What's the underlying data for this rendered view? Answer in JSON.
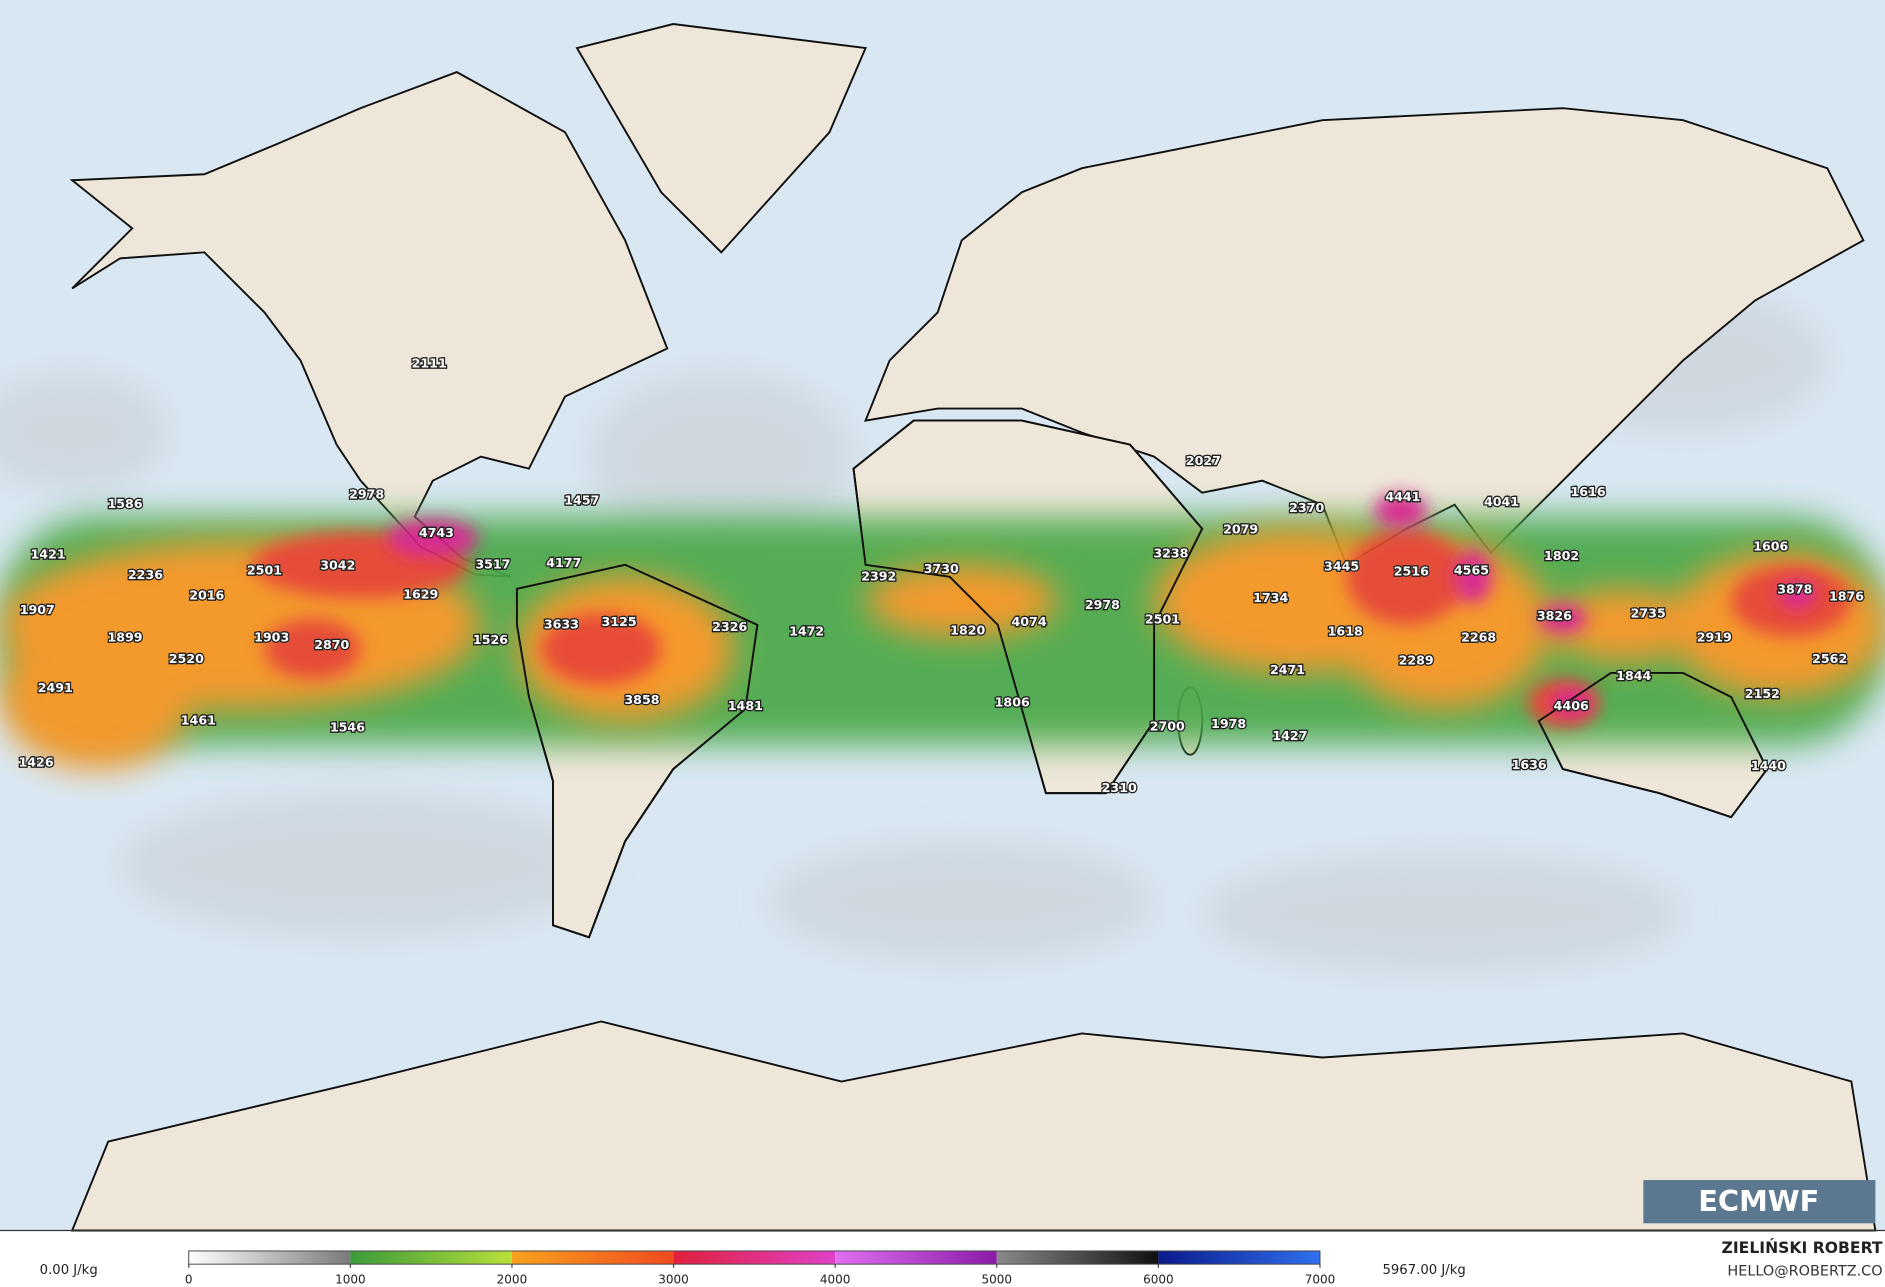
{
  "map": {
    "labels": [
      2111,
      2978,
      1586,
      1457,
      4743,
      1421,
      2236,
      2501,
      3042,
      3517,
      4177,
      1629,
      2016,
      1907,
      1899,
      1903,
      2870,
      1526,
      3633,
      3125,
      2326,
      1472,
      2392,
      3730,
      1820,
      4074,
      2978,
      2501,
      3238,
      2027,
      2079,
      2370,
      1734,
      1618,
      2471,
      3445,
      4441,
      2516,
      2289,
      4041,
      4565,
      2268,
      1616,
      1802,
      3826,
      2735,
      2919,
      1606,
      3878,
      1876,
      2562,
      2152,
      1844,
      4406,
      1636,
      1440,
      2520,
      2491,
      1461,
      1546,
      3858,
      1481,
      1806,
      2700,
      1978,
      1427,
      2310,
      1426
    ]
  },
  "colorbar": {
    "min_label": "0.00 J/kg",
    "max_label": "5967.00 J/kg",
    "ticks": [
      0,
      1000,
      2000,
      3000,
      4000,
      5000,
      6000,
      7000
    ]
  },
  "logo": "ECMWF",
  "credit": {
    "name": "ZIELIŃSKI ROBERT",
    "email": "HELLO@ROBERTZ.CO"
  }
}
